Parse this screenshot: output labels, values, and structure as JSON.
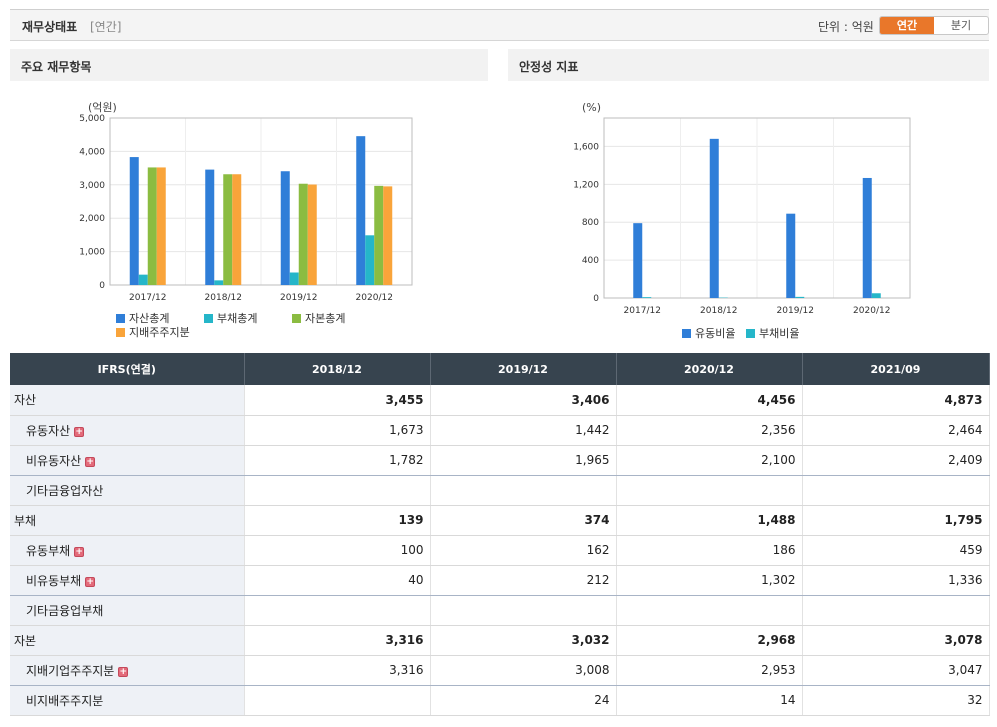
{
  "header": {
    "title": "재무상태표",
    "subtitle": "[연간]",
    "unit_label": "단위 : 억원",
    "toggle": {
      "annual": "연간",
      "quarter": "분기"
    }
  },
  "panels": {
    "left_title": "주요 재무항목",
    "right_title": "안정성 지표"
  },
  "chart_data": [
    {
      "type": "bar",
      "title": "주요 재무항목",
      "ylabel": "(억원)",
      "ylim": [
        0,
        5000
      ],
      "yticks": [
        "0",
        "1,000",
        "2,000",
        "3,000",
        "4,000",
        "5,000"
      ],
      "ytick_values": [
        0,
        1000,
        2000,
        3000,
        4000,
        5000
      ],
      "categories": [
        "2017/12",
        "2018/12",
        "2019/12",
        "2020/12"
      ],
      "grid": true,
      "legend_position": "bottom",
      "series": [
        {
          "name": "자산총계",
          "color": "#2f7ed8",
          "values": [
            3830,
            3455,
            3406,
            4456
          ]
        },
        {
          "name": "부채총계",
          "color": "#25b6c9",
          "values": [
            310,
            139,
            374,
            1488
          ]
        },
        {
          "name": "자본총계",
          "color": "#8bbc41",
          "values": [
            3520,
            3316,
            3032,
            2968
          ]
        },
        {
          "name": "지배주주지분",
          "color": "#f9a43a",
          "values": [
            3520,
            3316,
            3008,
            2953
          ]
        }
      ]
    },
    {
      "type": "bar",
      "title": "안정성 지표",
      "ylabel": "(%)",
      "ylim": [
        0,
        1900
      ],
      "yticks": [
        "0",
        "400",
        "800",
        "1,200",
        "1,600"
      ],
      "ytick_values": [
        0,
        400,
        800,
        1200,
        1600
      ],
      "categories": [
        "2017/12",
        "2018/12",
        "2019/12",
        "2020/12"
      ],
      "grid": true,
      "legend_position": "bottom",
      "series": [
        {
          "name": "유동비율",
          "color": "#2f7ed8",
          "values": [
            790,
            1680,
            890,
            1267
          ]
        },
        {
          "name": "부채비율",
          "color": "#25b6c9",
          "values": [
            9,
            4,
            12,
            50
          ]
        }
      ]
    }
  ],
  "table": {
    "header_label": "IFRS(연결)",
    "columns": [
      "2018/12",
      "2019/12",
      "2020/12",
      "2021/09"
    ],
    "rows": [
      {
        "label": "자산",
        "indent": false,
        "bold": true,
        "expand": false,
        "values": [
          "3,455",
          "3,406",
          "4,456",
          "4,873"
        ]
      },
      {
        "label": "유동자산",
        "indent": true,
        "bold": false,
        "expand": true,
        "values": [
          "1,673",
          "1,442",
          "2,356",
          "2,464"
        ]
      },
      {
        "label": "비유동자산",
        "indent": true,
        "bold": false,
        "expand": true,
        "values": [
          "1,782",
          "1,965",
          "2,100",
          "2,409"
        ]
      },
      {
        "label": "기타금융업자산",
        "indent": true,
        "bold": false,
        "expand": false,
        "values": [
          "",
          "",
          "",
          ""
        ]
      },
      {
        "label": "부채",
        "indent": false,
        "bold": true,
        "expand": false,
        "values": [
          "139",
          "374",
          "1,488",
          "1,795"
        ]
      },
      {
        "label": "유동부채",
        "indent": true,
        "bold": false,
        "expand": true,
        "values": [
          "100",
          "162",
          "186",
          "459"
        ]
      },
      {
        "label": "비유동부채",
        "indent": true,
        "bold": false,
        "expand": true,
        "values": [
          "40",
          "212",
          "1,302",
          "1,336"
        ]
      },
      {
        "label": "기타금융업부채",
        "indent": true,
        "bold": false,
        "expand": false,
        "values": [
          "",
          "",
          "",
          ""
        ]
      },
      {
        "label": "자본",
        "indent": false,
        "bold": true,
        "expand": false,
        "values": [
          "3,316",
          "3,032",
          "2,968",
          "3,078"
        ]
      },
      {
        "label": "지배기업주주지분",
        "indent": true,
        "bold": false,
        "expand": true,
        "values": [
          "3,316",
          "3,008",
          "2,953",
          "3,047"
        ]
      },
      {
        "label": "비지배주주지분",
        "indent": true,
        "bold": false,
        "expand": false,
        "values": [
          "",
          "24",
          "14",
          "32"
        ]
      }
    ]
  }
}
